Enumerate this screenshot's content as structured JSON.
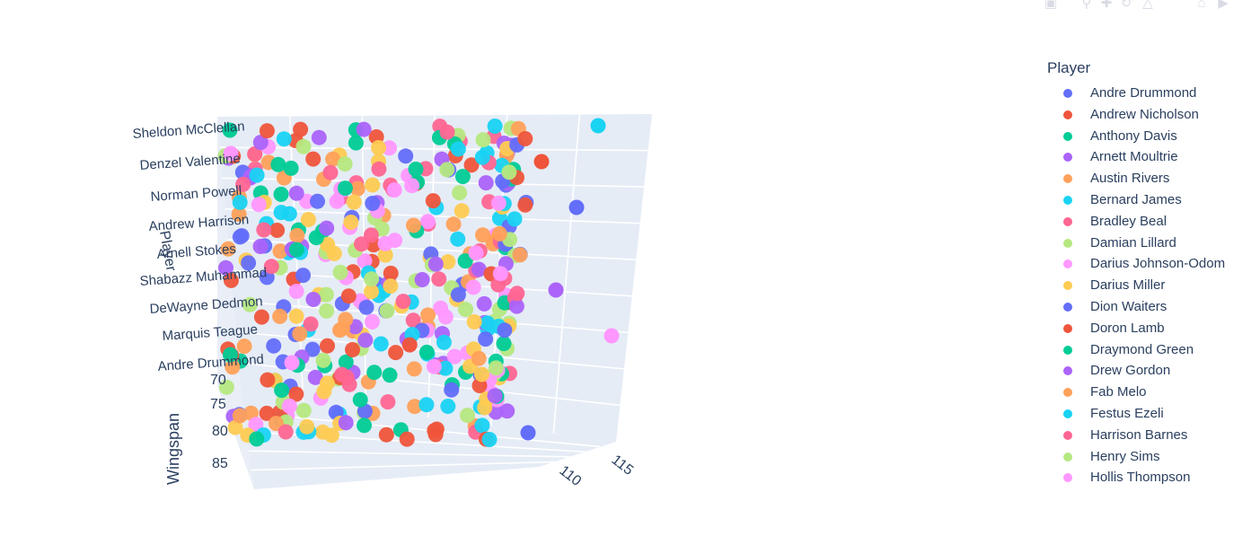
{
  "chart_data": {
    "type": "scatter3d",
    "title": "",
    "axes": {
      "x": {
        "label": "",
        "ticks": [
          "110",
          "115"
        ]
      },
      "y": {
        "label": "Player",
        "ticks": [
          "Andre Drummond",
          "Marquis Teague",
          "DeWayne Dedmon",
          "Shabazz Muhammad",
          "Arnell Stokes",
          "Andrew Harrison",
          "Norman Powell",
          "Denzel Valentine",
          "Sheldon McClellan"
        ]
      },
      "z": {
        "label": "Wingspan",
        "ticks": [
          "70",
          "75",
          "80",
          "85"
        ]
      }
    },
    "legend": {
      "title": "Player",
      "placement": "right",
      "entries": [
        {
          "name": "Andre Drummond",
          "color": "#636efa"
        },
        {
          "name": "Andrew Nicholson",
          "color": "#EF553B"
        },
        {
          "name": "Anthony Davis",
          "color": "#00cc96"
        },
        {
          "name": "Arnett Moultrie",
          "color": "#ab63fa"
        },
        {
          "name": "Austin Rivers",
          "color": "#FFA15A"
        },
        {
          "name": "Bernard James",
          "color": "#19d3f3"
        },
        {
          "name": "Bradley Beal",
          "color": "#FF6692"
        },
        {
          "name": "Damian Lillard",
          "color": "#B6E880"
        },
        {
          "name": "Darius Johnson-Odom",
          "color": "#FF97FF"
        },
        {
          "name": "Darius Miller",
          "color": "#FECB52"
        },
        {
          "name": "Dion Waiters",
          "color": "#636efa"
        },
        {
          "name": "Doron Lamb",
          "color": "#EF553B"
        },
        {
          "name": "Draymond Green",
          "color": "#00cc96"
        },
        {
          "name": "Drew Gordon",
          "color": "#ab63fa"
        },
        {
          "name": "Fab Melo",
          "color": "#FFA15A"
        },
        {
          "name": "Festus Ezeli",
          "color": "#19d3f3"
        },
        {
          "name": "Harrison Barnes",
          "color": "#FF6692"
        },
        {
          "name": "Henry Sims",
          "color": "#B6E880"
        },
        {
          "name": "Hollis Thompson",
          "color": "#FF97FF"
        }
      ]
    },
    "point_count": 420,
    "palette": [
      "#636efa",
      "#EF553B",
      "#00cc96",
      "#ab63fa",
      "#FFA15A",
      "#19d3f3",
      "#FF6692",
      "#B6E880",
      "#FF97FF",
      "#FECB52"
    ]
  }
}
